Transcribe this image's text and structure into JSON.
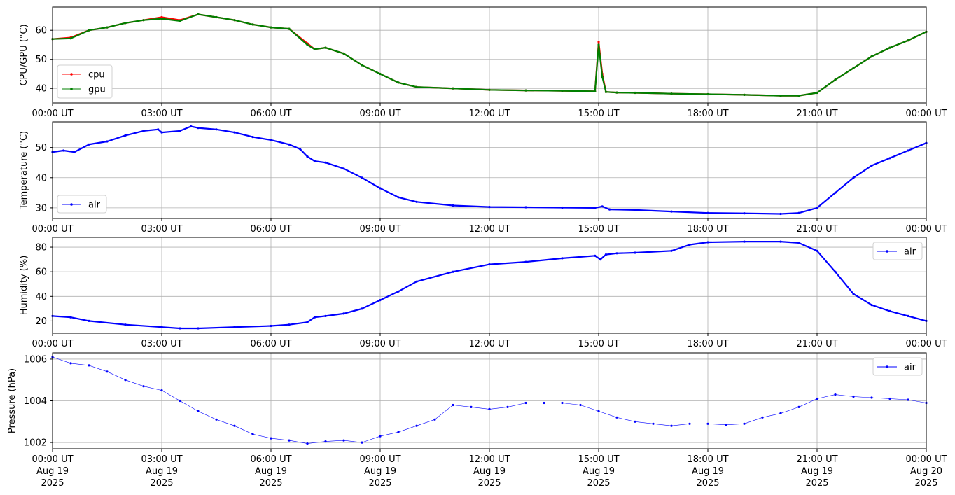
{
  "chart_data": [
    {
      "type": "line",
      "ylabel": "CPU/GPU (°C)",
      "ylim": [
        35,
        68
      ],
      "yticks": [
        40,
        50,
        60
      ],
      "grid": true,
      "legend_position": "lower-left",
      "xticks": [
        "00:00 UT",
        "03:00 UT",
        "06:00 UT",
        "09:00 UT",
        "12:00 UT",
        "15:00 UT",
        "18:00 UT",
        "21:00 UT",
        "00:00 UT"
      ],
      "series": [
        {
          "name": "cpu",
          "color": "#ff0000",
          "x": [
            0,
            0.5,
            1,
            1.5,
            2,
            2.5,
            3,
            3.5,
            4,
            4.5,
            5,
            5.5,
            6,
            6.5,
            7,
            7.2,
            7.5,
            8,
            8.5,
            9,
            9.5,
            10,
            11,
            12,
            13,
            14,
            14.9,
            15.0,
            15.1,
            15.2,
            15.5,
            16,
            17,
            18,
            19,
            20,
            20.5,
            21,
            21.5,
            22,
            22.5,
            23,
            23.5,
            24
          ],
          "y": [
            57,
            57.5,
            60,
            61,
            62.5,
            63.5,
            64.5,
            63.5,
            65.5,
            64.5,
            63.5,
            62,
            61,
            60.5,
            55.5,
            53.5,
            54,
            52,
            48,
            45,
            42,
            40.5,
            40,
            39.5,
            39.3,
            39.2,
            39,
            56,
            45,
            38.8,
            38.6,
            38.5,
            38.2,
            38,
            37.8,
            37.5,
            37.5,
            38.5,
            43,
            47,
            51,
            54,
            56.5,
            59.5
          ]
        },
        {
          "name": "gpu",
          "color": "#008000",
          "x": [
            0,
            0.5,
            1,
            1.5,
            2,
            2.5,
            3,
            3.5,
            4,
            4.5,
            5,
            5.5,
            6,
            6.5,
            7,
            7.2,
            7.5,
            8,
            8.5,
            9,
            9.5,
            10,
            11,
            12,
            13,
            14,
            14.9,
            15.0,
            15.1,
            15.2,
            15.5,
            16,
            17,
            18,
            19,
            20,
            20.5,
            21,
            21.5,
            22,
            22.5,
            23,
            23.5,
            24
          ],
          "y": [
            57,
            57.2,
            60,
            61,
            62.5,
            63.5,
            64,
            63.2,
            65.5,
            64.5,
            63.5,
            62,
            61,
            60.5,
            55,
            53.5,
            54,
            52,
            48,
            45,
            42,
            40.5,
            40,
            39.5,
            39.3,
            39.2,
            39,
            55,
            44,
            38.8,
            38.6,
            38.5,
            38.2,
            38,
            37.8,
            37.5,
            37.5,
            38.5,
            43,
            47,
            51,
            54,
            56.5,
            59.5
          ]
        }
      ]
    },
    {
      "type": "line",
      "ylabel": "Temperature (°C)",
      "ylim": [
        26.5,
        58.5
      ],
      "yticks": [
        30,
        40,
        50
      ],
      "grid": true,
      "legend_position": "lower-left",
      "xticks": [
        "00:00 UT",
        "03:00 UT",
        "06:00 UT",
        "09:00 UT",
        "12:00 UT",
        "15:00 UT",
        "18:00 UT",
        "21:00 UT",
        "00:00 UT"
      ],
      "series": [
        {
          "name": "air",
          "color": "#0000ff",
          "x": [
            0,
            0.3,
            0.6,
            1,
            1.5,
            2,
            2.5,
            2.9,
            3.0,
            3.5,
            3.8,
            4,
            4.5,
            5,
            5.5,
            6,
            6.5,
            6.8,
            7,
            7.2,
            7.5,
            8,
            8.5,
            9,
            9.5,
            10,
            11,
            12,
            13,
            14,
            14.9,
            15.1,
            15.3,
            16,
            17,
            18,
            19,
            20,
            20.5,
            21,
            21.5,
            22,
            22.5,
            23,
            23.5,
            24
          ],
          "y": [
            48.5,
            49,
            48.5,
            51,
            52,
            54,
            55.5,
            56,
            55,
            55.5,
            57,
            56.5,
            56,
            55,
            53.5,
            52.5,
            51,
            49.5,
            47,
            45.5,
            45,
            43,
            40,
            36.5,
            33.5,
            32,
            30.8,
            30.3,
            30.2,
            30.1,
            30,
            30.5,
            29.5,
            29.3,
            28.8,
            28.3,
            28.2,
            28,
            28.3,
            30,
            35,
            40,
            44,
            46.5,
            49,
            51.5
          ]
        }
      ]
    },
    {
      "type": "line",
      "ylabel": "Humidity (%)",
      "ylim": [
        10,
        88
      ],
      "yticks": [
        20,
        40,
        60,
        80
      ],
      "grid": true,
      "legend_position": "upper-right",
      "xticks": [
        "00:00 UT",
        "03:00 UT",
        "06:00 UT",
        "09:00 UT",
        "12:00 UT",
        "15:00 UT",
        "18:00 UT",
        "21:00 UT",
        "00:00 UT"
      ],
      "series": [
        {
          "name": "air",
          "color": "#0000ff",
          "x": [
            0,
            0.5,
            1,
            2,
            3,
            3.5,
            4,
            5,
            6,
            6.5,
            7,
            7.2,
            7.5,
            8,
            8.5,
            9,
            9.5,
            10,
            11,
            12,
            13,
            14,
            14.9,
            15.05,
            15.2,
            15.5,
            16,
            17,
            17.5,
            18,
            19,
            20,
            20.5,
            21,
            21.5,
            22,
            22.5,
            23,
            23.5,
            24
          ],
          "y": [
            24,
            23,
            20,
            17,
            15,
            14,
            14,
            15,
            16,
            17,
            19,
            23,
            24,
            26,
            30,
            37,
            44,
            52,
            60,
            66,
            68,
            71,
            73,
            70,
            74,
            75,
            75.5,
            77,
            82,
            84,
            84.5,
            84.5,
            83.5,
            77,
            60,
            42,
            33,
            28,
            24,
            20
          ]
        }
      ]
    },
    {
      "type": "scatter",
      "ylabel": "Pressure (hPa)",
      "ylim": [
        1001.7,
        1006.3
      ],
      "yticks": [
        1002,
        1004,
        1006
      ],
      "grid": true,
      "legend_position": "upper-right",
      "xticks": [
        "00:00 UT\nAug 19\n2025",
        "03:00 UT\nAug 19\n2025",
        "06:00 UT\nAug 19\n2025",
        "09:00 UT\nAug 19\n2025",
        "12:00 UT\nAug 19\n2025",
        "15:00 UT\nAug 19\n2025",
        "18:00 UT\nAug 19\n2025",
        "21:00 UT\nAug 19\n2025",
        "00:00 UT\nAug 20\n2025"
      ],
      "series": [
        {
          "name": "air",
          "color": "#0000ff",
          "x": [
            0,
            0.5,
            1,
            1.5,
            2,
            2.5,
            3,
            3.5,
            4,
            4.5,
            5,
            5.5,
            6,
            6.5,
            7,
            7.5,
            8,
            8.5,
            9,
            9.5,
            10,
            10.5,
            11,
            11.5,
            12,
            12.5,
            13,
            13.5,
            14,
            14.5,
            15,
            15.5,
            16,
            16.5,
            17,
            17.5,
            18,
            18.5,
            19,
            19.5,
            20,
            20.5,
            21,
            21.5,
            22,
            22.5,
            23,
            23.5,
            24
          ],
          "y": [
            1006.1,
            1005.8,
            1005.7,
            1005.4,
            1005,
            1004.7,
            1004.5,
            1004,
            1003.5,
            1003.1,
            1002.8,
            1002.4,
            1002.2,
            1002.1,
            1001.95,
            1002.05,
            1002.1,
            1002,
            1002.3,
            1002.5,
            1002.8,
            1003.1,
            1003.8,
            1003.7,
            1003.6,
            1003.7,
            1003.9,
            1003.9,
            1003.9,
            1003.8,
            1003.5,
            1003.2,
            1003,
            1002.9,
            1002.8,
            1002.9,
            1002.9,
            1002.85,
            1002.9,
            1003.2,
            1003.4,
            1003.7,
            1004.1,
            1004.3,
            1004.2,
            1004.15,
            1004.1,
            1004.05,
            1003.9
          ]
        }
      ]
    }
  ]
}
